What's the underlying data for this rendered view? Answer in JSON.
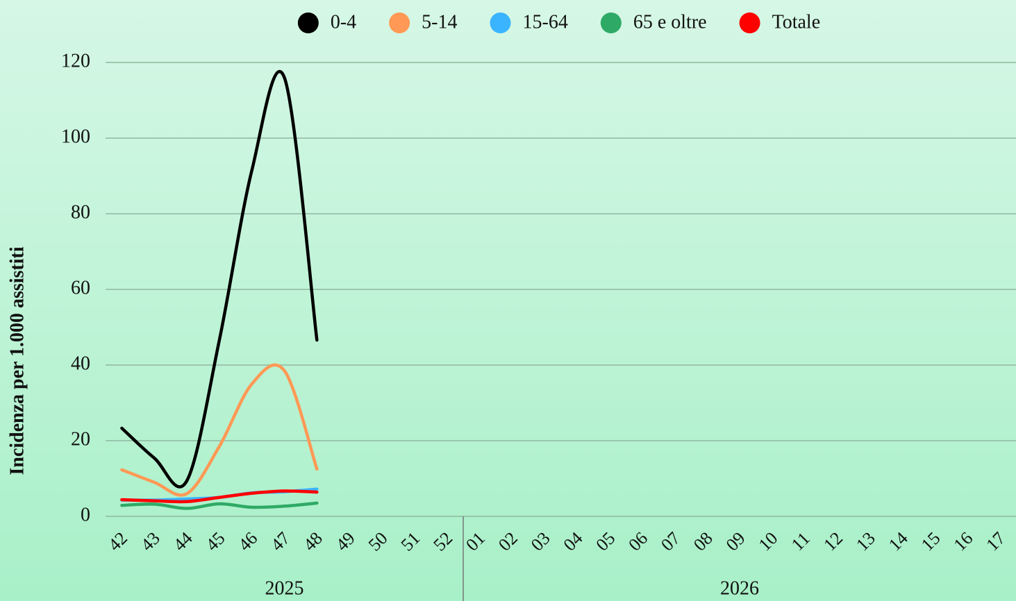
{
  "chart_data": {
    "type": "line",
    "y_label": "Incidenza per 1.000 assistiti",
    "categories": [
      "42",
      "43",
      "44",
      "45",
      "46",
      "47",
      "48",
      "49",
      "50",
      "51",
      "52",
      "01",
      "02",
      "03",
      "04",
      "05",
      "06",
      "07",
      "08",
      "09",
      "10",
      "11",
      "12",
      "13",
      "14",
      "15",
      "16",
      "17"
    ],
    "groups": [
      {
        "label": "2025",
        "span": 11
      },
      {
        "label": "2026",
        "span": 17
      }
    ],
    "series": [
      {
        "name": "0-4",
        "color": "#000000",
        "values": [
          23.3,
          15.4,
          9.4,
          46.6,
          91.5,
          116,
          46.6,
          null,
          null,
          null,
          null,
          null,
          null,
          null,
          null,
          null,
          null,
          null,
          null,
          null,
          null,
          null,
          null,
          null,
          null,
          null,
          null,
          null
        ]
      },
      {
        "name": "5-14",
        "color": "#ff9955",
        "values": [
          12.3,
          9,
          6,
          18.5,
          35,
          38.5,
          12.5,
          null,
          null,
          null,
          null,
          null,
          null,
          null,
          null,
          null,
          null,
          null,
          null,
          null,
          null,
          null,
          null,
          null,
          null,
          null,
          null,
          null
        ]
      },
      {
        "name": "15-64",
        "color": "#3bb4ff",
        "values": [
          4.3,
          4.3,
          4.6,
          5,
          6.2,
          6.5,
          7.2,
          null,
          null,
          null,
          null,
          null,
          null,
          null,
          null,
          null,
          null,
          null,
          null,
          null,
          null,
          null,
          null,
          null,
          null,
          null,
          null,
          null
        ]
      },
      {
        "name": "65 e oltre",
        "color": "#2eaa66",
        "values": [
          2.9,
          3.2,
          2.1,
          3.3,
          2.4,
          2.7,
          3.5,
          null,
          null,
          null,
          null,
          null,
          null,
          null,
          null,
          null,
          null,
          null,
          null,
          null,
          null,
          null,
          null,
          null,
          null,
          null,
          null,
          null
        ]
      },
      {
        "name": "Totale",
        "color": "#ff0000",
        "values": [
          4.4,
          4.1,
          3.9,
          5,
          6.1,
          6.7,
          6.4,
          null,
          null,
          null,
          null,
          null,
          null,
          null,
          null,
          null,
          null,
          null,
          null,
          null,
          null,
          null,
          null,
          null,
          null,
          null,
          null,
          null
        ]
      }
    ],
    "ylim": [
      0,
      120
    ],
    "yticks": [
      0,
      20,
      40,
      60,
      80,
      100,
      120
    ],
    "grid": true,
    "legend": "top"
  }
}
